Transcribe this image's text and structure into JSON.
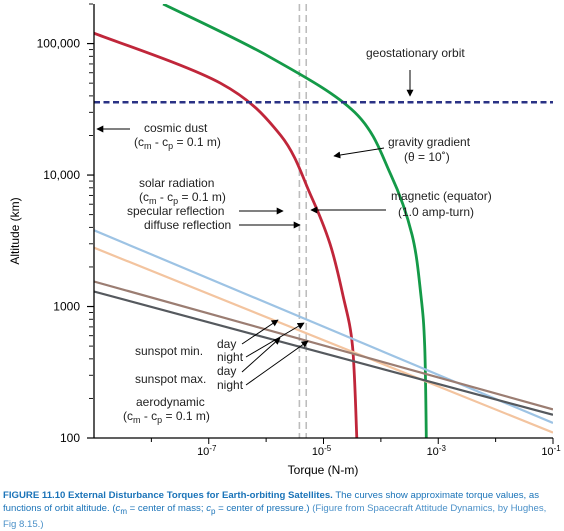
{
  "chart_data": {
    "type": "line",
    "xlabel": "Torque (N-m)",
    "ylabel": "Altitude (km)",
    "x_scale": "log",
    "y_scale": "log",
    "xlim": [
      1e-09,
      0.1
    ],
    "ylim": [
      100,
      200000
    ],
    "x_ticks": [
      {
        "value": 1e-07,
        "label": "10",
        "exp": "-7"
      },
      {
        "value": 1e-05,
        "label": "10",
        "exp": "-5"
      },
      {
        "value": 0.001,
        "label": "10",
        "exp": "-3"
      },
      {
        "value": 0.1,
        "label": "10",
        "exp": "-1"
      }
    ],
    "y_ticks": [
      {
        "value": 100,
        "label": "100"
      },
      {
        "value": 1000,
        "label": "1000"
      },
      {
        "value": 10000,
        "label": "10,000"
      },
      {
        "value": 100000,
        "label": "100,000"
      }
    ],
    "series": [
      {
        "key": "gravity-gradient",
        "color": "#149a48",
        "points": [
          [
            1.6e-08,
            200000
          ],
          [
            1.1e-06,
            80000
          ],
          [
            3.5e-05,
            30000
          ],
          [
            0.00015,
            10000
          ],
          [
            0.00035,
            3500
          ],
          [
            0.0005,
            1200
          ],
          [
            0.00058,
            500
          ],
          [
            0.00062,
            100
          ]
        ]
      },
      {
        "key": "solar-radiation",
        "color": "#c0263a",
        "points": [
          [
            1e-09,
            120000
          ],
          [
            1.6e-07,
            50000
          ],
          [
            1.8e-06,
            20000
          ],
          [
            6e-06,
            7000
          ],
          [
            1.3e-05,
            3000
          ],
          [
            2.2e-05,
            1200
          ],
          [
            3.2e-05,
            500
          ],
          [
            3.8e-05,
            100
          ]
        ]
      },
      {
        "key": "magnetic-day-sunspot-min",
        "color": "#9dc3e4",
        "points": [
          [
            1e-09,
            3800
          ],
          [
            0.1,
            130
          ]
        ]
      },
      {
        "key": "magnetic-night-sunspot-min",
        "color": "#f3c49f",
        "points": [
          [
            1e-09,
            2800
          ],
          [
            0.1,
            110
          ]
        ]
      },
      {
        "key": "magnetic-day-sunspot-max",
        "color": "#9b7d72",
        "points": [
          [
            1e-09,
            1550
          ],
          [
            0.1,
            165
          ]
        ]
      },
      {
        "key": "magnetic-night-sunspot-max",
        "color": "#55595e",
        "points": [
          [
            1e-09,
            1300
          ],
          [
            0.1,
            150
          ]
        ]
      }
    ],
    "geostationary_orbit": {
      "altitude": 35786,
      "color": "#2a3285",
      "label": "geostationary orbit"
    },
    "torque_band": {
      "x": [
        3.8e-06,
        5e-06
      ],
      "color": "#bdbdbd"
    },
    "annotations": {
      "cosmic_dust": [
        "cosmic dust",
        "(c",
        "m",
        " - c",
        "p",
        " = 0.1 m)"
      ],
      "solar_radiation": [
        "solar radiation",
        "(c",
        "m",
        " - c",
        "p",
        " = 0.1 m)"
      ],
      "specular_reflection": "specular reflection",
      "diffuse_reflection": "diffuse reflection",
      "gravity_gradient": [
        "gravity gradient",
        "(θ = 10˚)"
      ],
      "magnetic": [
        "magnetic (equator)",
        "(1.0 amp-turn)"
      ],
      "sunspot_min": "sunspot min.",
      "sunspot_max": "sunspot max.",
      "day": "day",
      "night": "night",
      "aerodynamic": [
        "aerodynamic",
        "(c",
        "m",
        " - c",
        "p",
        " = 0.1 m)"
      ]
    }
  },
  "caption": {
    "figure": "FIGURE 11.10 External Disturbance Torques for Earth-orbiting Satellites.",
    "text1": " The curves show approximate torque values, as functions of orbit altitude. (",
    "cm": "c",
    "cm_sub": "m",
    "text2": " = center of mass; ",
    "cp": "c",
    "cp_sub": "p",
    "text3": " = center of pressure.) ",
    "credit": "(Figure from Spacecraft Attitude Dynamics, by Hughes, Fig 8.15.)"
  }
}
